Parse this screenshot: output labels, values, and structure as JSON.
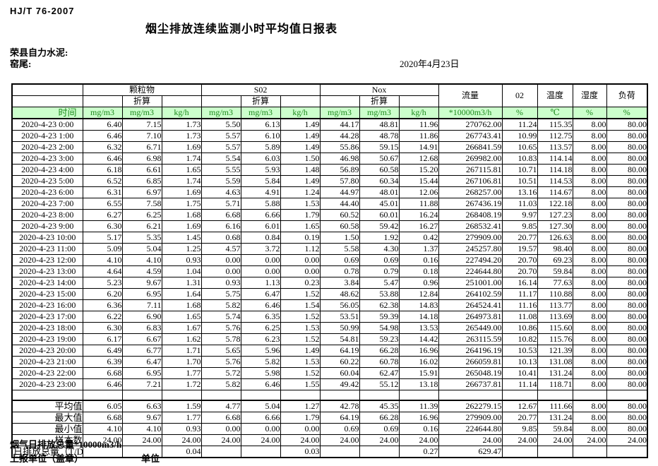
{
  "meta": {
    "standard": "HJ/T  76-2007",
    "title": "烟尘排放连续监测小时平均值日报表",
    "company": "荣县自力水泥:",
    "location": "窑尾:",
    "date": "2020年4月23日"
  },
  "colors": {
    "header_bg": "#ccffcc",
    "header_text": "#1d8a1d",
    "border": "#000000"
  },
  "table": {
    "time_label": "时间",
    "col_groups": [
      "颗粒物",
      "S02",
      "Nox"
    ],
    "converted_label": "折算",
    "merged_headers": [
      "流量",
      "02",
      "温度",
      "湿度",
      "负荷"
    ],
    "units": [
      "mg/m3",
      "mg/m3",
      "kg/h",
      "mg/m3",
      "mg/m3",
      "kg/h",
      "mg/m3",
      "mg/m3",
      "kg/h",
      "*10000m3/h",
      "%",
      "℃",
      "%",
      "%"
    ],
    "rows": [
      {
        "time": "2020-4-23 0:00",
        "values": [
          "6.40",
          "7.15",
          "1.73",
          "5.50",
          "6.13",
          "1.49",
          "44.17",
          "48.81",
          "11.96",
          "270762.00",
          "11.24",
          "115.35",
          "8.00",
          "80.00"
        ]
      },
      {
        "time": "2020-4-23 1:00",
        "values": [
          "6.46",
          "7.10",
          "1.73",
          "5.57",
          "6.10",
          "1.49",
          "44.28",
          "48.78",
          "11.86",
          "267743.41",
          "10.99",
          "112.75",
          "8.00",
          "80.00"
        ]
      },
      {
        "time": "2020-4-23 2:00",
        "values": [
          "6.32",
          "6.71",
          "1.69",
          "5.57",
          "5.89",
          "1.49",
          "55.86",
          "59.15",
          "14.91",
          "266841.59",
          "10.65",
          "113.57",
          "8.00",
          "80.00"
        ]
      },
      {
        "time": "2020-4-23 3:00",
        "values": [
          "6.46",
          "6.98",
          "1.74",
          "5.54",
          "6.03",
          "1.50",
          "46.98",
          "50.67",
          "12.68",
          "269982.00",
          "10.83",
          "114.14",
          "8.00",
          "80.00"
        ]
      },
      {
        "time": "2020-4-23 4:00",
        "values": [
          "6.18",
          "6.61",
          "1.65",
          "5.55",
          "5.93",
          "1.48",
          "56.89",
          "60.58",
          "15.20",
          "267115.81",
          "10.71",
          "114.18",
          "8.00",
          "80.00"
        ]
      },
      {
        "time": "2020-4-23 5:00",
        "values": [
          "6.52",
          "6.85",
          "1.74",
          "5.59",
          "5.84",
          "1.49",
          "57.80",
          "60.34",
          "15.44",
          "267106.81",
          "10.51",
          "114.53",
          "8.00",
          "80.00"
        ]
      },
      {
        "time": "2020-4-23 6:00",
        "values": [
          "6.31",
          "6.97",
          "1.69",
          "4.63",
          "4.91",
          "1.24",
          "44.97",
          "48.01",
          "12.06",
          "268257.00",
          "13.16",
          "114.67",
          "8.00",
          "80.00"
        ]
      },
      {
        "time": "2020-4-23 7:00",
        "values": [
          "6.55",
          "7.58",
          "1.75",
          "5.71",
          "5.88",
          "1.53",
          "44.40",
          "45.01",
          "11.88",
          "267436.19",
          "11.03",
          "122.18",
          "8.00",
          "80.00"
        ]
      },
      {
        "time": "2020-4-23 8:00",
        "values": [
          "6.27",
          "6.25",
          "1.68",
          "6.68",
          "6.66",
          "1.79",
          "60.52",
          "60.01",
          "16.24",
          "268408.19",
          "9.97",
          "127.23",
          "8.00",
          "80.00"
        ]
      },
      {
        "time": "2020-4-23 9:00",
        "values": [
          "6.30",
          "6.21",
          "1.69",
          "6.16",
          "6.01",
          "1.65",
          "60.58",
          "59.42",
          "16.27",
          "268532.41",
          "9.85",
          "127.30",
          "8.00",
          "80.00"
        ]
      },
      {
        "time": "2020-4-23 10:00",
        "values": [
          "5.17",
          "5.35",
          "1.45",
          "0.68",
          "0.84",
          "0.19",
          "1.50",
          "1.92",
          "0.42",
          "279909.00",
          "20.77",
          "126.63",
          "8.00",
          "80.00"
        ]
      },
      {
        "time": "2020-4-23 11:00",
        "values": [
          "5.09",
          "5.04",
          "1.25",
          "4.57",
          "3.72",
          "1.12",
          "5.58",
          "4.30",
          "1.37",
          "245257.80",
          "19.57",
          "98.40",
          "8.00",
          "80.00"
        ]
      },
      {
        "time": "2020-4-23 12:00",
        "values": [
          "4.10",
          "4.10",
          "0.93",
          "0.00",
          "0.00",
          "0.00",
          "0.69",
          "0.69",
          "0.16",
          "227494.20",
          "20.70",
          "69.23",
          "8.00",
          "80.00"
        ]
      },
      {
        "time": "2020-4-23 13:00",
        "values": [
          "4.64",
          "4.59",
          "1.04",
          "0.00",
          "0.00",
          "0.00",
          "0.78",
          "0.79",
          "0.18",
          "224644.80",
          "20.70",
          "59.84",
          "8.00",
          "80.00"
        ]
      },
      {
        "time": "2020-4-23 14:00",
        "values": [
          "5.23",
          "9.67",
          "1.31",
          "0.93",
          "1.13",
          "0.23",
          "3.84",
          "5.47",
          "0.96",
          "251001.00",
          "16.14",
          "77.63",
          "8.00",
          "80.00"
        ]
      },
      {
        "time": "2020-4-23 15:00",
        "values": [
          "6.20",
          "6.95",
          "1.64",
          "5.75",
          "6.47",
          "1.52",
          "48.62",
          "53.88",
          "12.84",
          "264102.59",
          "11.17",
          "110.88",
          "8.00",
          "80.00"
        ]
      },
      {
        "time": "2020-4-23 16:00",
        "values": [
          "6.36",
          "7.11",
          "1.68",
          "5.82",
          "6.46",
          "1.54",
          "56.05",
          "62.38",
          "14.83",
          "264524.41",
          "11.16",
          "113.77",
          "8.00",
          "80.00"
        ]
      },
      {
        "time": "2020-4-23 17:00",
        "values": [
          "6.22",
          "6.90",
          "1.65",
          "5.74",
          "6.35",
          "1.52",
          "53.51",
          "59.39",
          "14.18",
          "264973.81",
          "11.08",
          "113.69",
          "8.00",
          "80.00"
        ]
      },
      {
        "time": "2020-4-23 18:00",
        "values": [
          "6.30",
          "6.83",
          "1.67",
          "5.76",
          "6.25",
          "1.53",
          "50.99",
          "54.98",
          "13.53",
          "265449.00",
          "10.86",
          "115.60",
          "8.00",
          "80.00"
        ]
      },
      {
        "time": "2020-4-23 19:00",
        "values": [
          "6.17",
          "6.67",
          "1.62",
          "5.78",
          "6.23",
          "1.52",
          "54.81",
          "59.23",
          "14.42",
          "263115.59",
          "10.82",
          "115.76",
          "8.00",
          "80.00"
        ]
      },
      {
        "time": "2020-4-23 20:00",
        "values": [
          "6.49",
          "6.77",
          "1.71",
          "5.65",
          "5.96",
          "1.49",
          "64.19",
          "66.28",
          "16.96",
          "264196.19",
          "10.53",
          "121.39",
          "8.00",
          "80.00"
        ]
      },
      {
        "time": "2020-4-23 21:00",
        "values": [
          "6.39",
          "6.47",
          "1.70",
          "5.76",
          "5.82",
          "1.53",
          "60.22",
          "60.78",
          "16.02",
          "266059.81",
          "10.13",
          "131.08",
          "8.00",
          "80.00"
        ]
      },
      {
        "time": "2020-4-23 22:00",
        "values": [
          "6.68",
          "6.95",
          "1.77",
          "5.72",
          "5.98",
          "1.52",
          "60.04",
          "62.47",
          "15.91",
          "265048.19",
          "10.41",
          "131.24",
          "8.00",
          "80.00"
        ]
      },
      {
        "time": "2020-4-23 23:00",
        "values": [
          "6.46",
          "7.21",
          "1.72",
          "5.82",
          "6.46",
          "1.55",
          "49.42",
          "55.12",
          "13.18",
          "266737.81",
          "11.14",
          "118.71",
          "8.00",
          "80.00"
        ]
      }
    ],
    "summary": [
      {
        "label": "平均值",
        "values": [
          "6.05",
          "6.63",
          "1.59",
          "4.77",
          "5.04",
          "1.27",
          "42.78",
          "45.35",
          "11.39",
          "262279.15",
          "12.67",
          "111.66",
          "8.00",
          "80.00"
        ]
      },
      {
        "label": "最大值",
        "values": [
          "6.68",
          "9.67",
          "1.77",
          "6.68",
          "6.66",
          "1.79",
          "64.19",
          "66.28",
          "16.96",
          "279909.00",
          "20.77",
          "131.24",
          "8.00",
          "80.00"
        ]
      },
      {
        "label": "最小值",
        "values": [
          "4.10",
          "4.10",
          "0.93",
          "0.00",
          "0.00",
          "0.00",
          "0.69",
          "0.69",
          "0.16",
          "224644.80",
          "9.85",
          "59.84",
          "8.00",
          "80.00"
        ]
      },
      {
        "label": "样本数",
        "values": [
          "24.00",
          "24.00",
          "24.00",
          "24.00",
          "24.00",
          "24.00",
          "24.00",
          "24.00",
          "24.00",
          "24.00",
          "24.00",
          "24.00",
          "24.00",
          "24.00"
        ]
      }
    ],
    "daily_total": {
      "label": "日排放总量",
      "unit_suffix": "（T/D）",
      "values": [
        "",
        "",
        "0.04",
        "",
        "",
        "0.03",
        "",
        "",
        "0.27",
        "629.47",
        "",
        "",
        "",
        ""
      ]
    }
  },
  "footer": {
    "flow_note": "烟气日排放总量*10000m3/h",
    "report_unit": "上报单位（盖章）",
    "unit_label": "单位"
  }
}
